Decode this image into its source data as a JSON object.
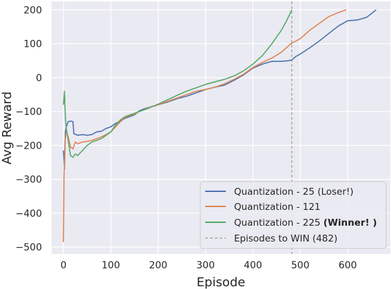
{
  "chart_data": {
    "type": "line",
    "title": "",
    "xlabel": "Episode",
    "ylabel": "Avg Reward",
    "xlim": [
      -25,
      690
    ],
    "ylim": [
      -520,
      225
    ],
    "x_ticks": [
      0,
      100,
      200,
      300,
      400,
      500,
      600
    ],
    "x_tick_labels": [
      "0",
      "100",
      "200",
      "300",
      "400",
      "500",
      "600"
    ],
    "y_ticks": [
      -500,
      -400,
      -300,
      -200,
      -100,
      0,
      100,
      200
    ],
    "y_tick_labels": [
      "−500",
      "−400",
      "−300",
      "−200",
      "−100",
      "0",
      "100",
      "200"
    ],
    "grid": true,
    "legend_position": "bottom-right",
    "series": [
      {
        "name": "Quantization - 25 (Loser!)",
        "color": "#4c72b0",
        "points": [
          [
            0,
            -215
          ],
          [
            2,
            -270
          ],
          [
            4,
            -160
          ],
          [
            6,
            -145
          ],
          [
            10,
            -130
          ],
          [
            15,
            -128
          ],
          [
            20,
            -130
          ],
          [
            22,
            -165
          ],
          [
            30,
            -170
          ],
          [
            40,
            -168
          ],
          [
            50,
            -170
          ],
          [
            60,
            -168
          ],
          [
            70,
            -160
          ],
          [
            80,
            -158
          ],
          [
            90,
            -150
          ],
          [
            100,
            -145
          ],
          [
            110,
            -135
          ],
          [
            120,
            -128
          ],
          [
            130,
            -120
          ],
          [
            140,
            -115
          ],
          [
            150,
            -110
          ],
          [
            160,
            -98
          ],
          [
            170,
            -92
          ],
          [
            180,
            -88
          ],
          [
            200,
            -80
          ],
          [
            220,
            -72
          ],
          [
            240,
            -62
          ],
          [
            260,
            -55
          ],
          [
            280,
            -45
          ],
          [
            300,
            -35
          ],
          [
            320,
            -28
          ],
          [
            340,
            -22
          ],
          [
            360,
            -8
          ],
          [
            380,
            8
          ],
          [
            400,
            28
          ],
          [
            420,
            40
          ],
          [
            440,
            48
          ],
          [
            460,
            48
          ],
          [
            475,
            50
          ],
          [
            482,
            52
          ],
          [
            490,
            62
          ],
          [
            500,
            70
          ],
          [
            520,
            88
          ],
          [
            540,
            108
          ],
          [
            560,
            130
          ],
          [
            580,
            152
          ],
          [
            600,
            168
          ],
          [
            620,
            170
          ],
          [
            640,
            178
          ],
          [
            660,
            200
          ]
        ]
      },
      {
        "name": "Quantization - 121",
        "color": "#dd8452",
        "points": [
          [
            0,
            -485
          ],
          [
            1,
            -300
          ],
          [
            3,
            -190
          ],
          [
            6,
            -160
          ],
          [
            10,
            -175
          ],
          [
            15,
            -205
          ],
          [
            20,
            -210
          ],
          [
            25,
            -190
          ],
          [
            30,
            -195
          ],
          [
            40,
            -190
          ],
          [
            50,
            -188
          ],
          [
            60,
            -185
          ],
          [
            70,
            -180
          ],
          [
            80,
            -175
          ],
          [
            90,
            -168
          ],
          [
            100,
            -160
          ],
          [
            110,
            -145
          ],
          [
            120,
            -130
          ],
          [
            130,
            -118
          ],
          [
            140,
            -112
          ],
          [
            150,
            -108
          ],
          [
            160,
            -100
          ],
          [
            170,
            -95
          ],
          [
            180,
            -88
          ],
          [
            200,
            -80
          ],
          [
            220,
            -70
          ],
          [
            240,
            -60
          ],
          [
            260,
            -50
          ],
          [
            280,
            -40
          ],
          [
            300,
            -35
          ],
          [
            320,
            -28
          ],
          [
            340,
            -18
          ],
          [
            360,
            -5
          ],
          [
            380,
            10
          ],
          [
            400,
            30
          ],
          [
            420,
            45
          ],
          [
            440,
            58
          ],
          [
            460,
            75
          ],
          [
            480,
            100
          ],
          [
            500,
            115
          ],
          [
            520,
            140
          ],
          [
            540,
            160
          ],
          [
            560,
            180
          ],
          [
            580,
            192
          ],
          [
            597,
            200
          ]
        ]
      },
      {
        "name": "Quantization - 225 (Winner! )",
        "color": "#55a868",
        "points": [
          [
            0,
            -80
          ],
          [
            2,
            -40
          ],
          [
            4,
            -120
          ],
          [
            6,
            -150
          ],
          [
            10,
            -185
          ],
          [
            15,
            -230
          ],
          [
            20,
            -235
          ],
          [
            25,
            -225
          ],
          [
            30,
            -230
          ],
          [
            40,
            -215
          ],
          [
            50,
            -200
          ],
          [
            60,
            -190
          ],
          [
            70,
            -185
          ],
          [
            80,
            -180
          ],
          [
            90,
            -170
          ],
          [
            100,
            -160
          ],
          [
            110,
            -140
          ],
          [
            120,
            -125
          ],
          [
            130,
            -115
          ],
          [
            140,
            -110
          ],
          [
            150,
            -105
          ],
          [
            160,
            -100
          ],
          [
            180,
            -90
          ],
          [
            200,
            -78
          ],
          [
            220,
            -65
          ],
          [
            240,
            -52
          ],
          [
            260,
            -40
          ],
          [
            280,
            -30
          ],
          [
            300,
            -20
          ],
          [
            320,
            -12
          ],
          [
            340,
            -5
          ],
          [
            360,
            5
          ],
          [
            380,
            20
          ],
          [
            400,
            40
          ],
          [
            420,
            65
          ],
          [
            440,
            100
          ],
          [
            460,
            140
          ],
          [
            470,
            165
          ],
          [
            482,
            200
          ]
        ]
      }
    ],
    "reference_line": {
      "name": "Episodes to WIN (482)",
      "x": 482,
      "color": "#999999"
    }
  }
}
